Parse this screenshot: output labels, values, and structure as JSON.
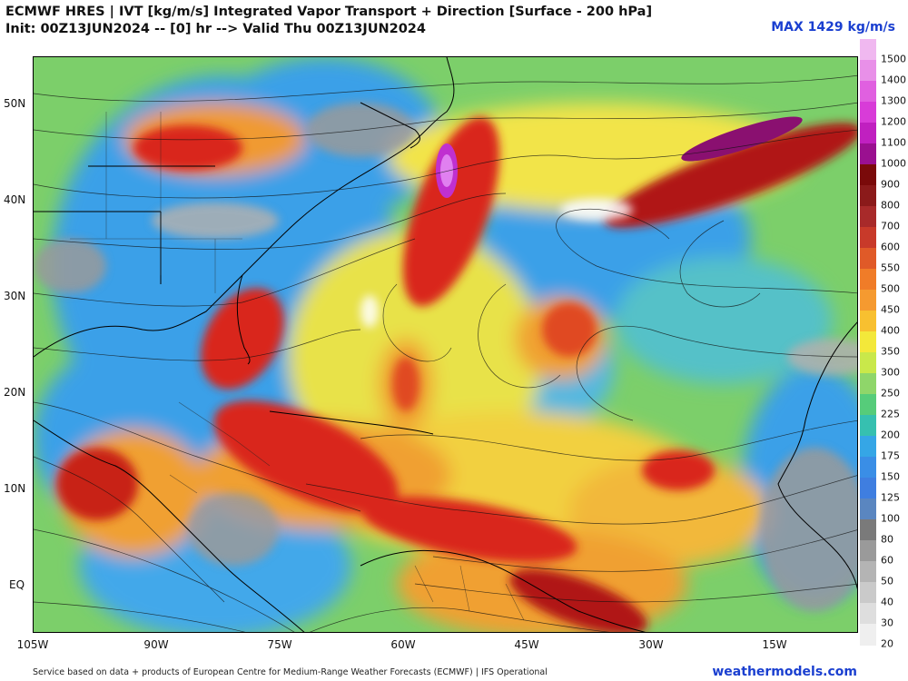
{
  "header": {
    "title_line1": "ECMWF HRES | IVT [kg/m/s] Integrated Vapor Transport + Direction [Surface - 200 hPa]",
    "title_line2": "Init: 00Z13JUN2024 -- [0] hr --> Valid Thu 00Z13JUN2024",
    "max_label": "MAX 1429 kg/m/s"
  },
  "map": {
    "lat_labels": [
      "50N",
      "40N",
      "30N",
      "20N",
      "10N",
      "EQ"
    ],
    "lon_labels": [
      "105W",
      "90W",
      "75W",
      "60W",
      "45W",
      "30W",
      "15W"
    ],
    "field_colors": {
      "ocean_low": "#3aa0e8",
      "moderate": "#6cd46a",
      "yellow": "#f2e64a",
      "orange": "#f09a30",
      "red": "#d9281c",
      "darkred": "#8b0a0a",
      "magenta": "#c030d0",
      "gray": "#8c8c8c"
    }
  },
  "colorbar": {
    "levels": [
      "1500",
      "1400",
      "1300",
      "1200",
      "1100",
      "1000",
      "900",
      "800",
      "700",
      "600",
      "550",
      "500",
      "450",
      "400",
      "350",
      "300",
      "250",
      "225",
      "200",
      "175",
      "150",
      "125",
      "100",
      "80",
      "60",
      "50",
      "40",
      "30",
      "20"
    ],
    "colors": [
      "#f0b8f0",
      "#e890e8",
      "#e060e0",
      "#d83cd8",
      "#c020c0",
      "#9a1090",
      "#7a0a0a",
      "#8b1a1a",
      "#a82a2a",
      "#c83a2a",
      "#e05a28",
      "#f07c28",
      "#f59a30",
      "#f8c030",
      "#f3e83a",
      "#c9e84a",
      "#8fd66a",
      "#56cc7a",
      "#36c0b0",
      "#35a6e6",
      "#3a8ee6",
      "#3f7ee0",
      "#5a86c0",
      "#7a7a7a",
      "#9a9a9a",
      "#b4b4b4",
      "#cacaca",
      "#dedede",
      "#efefef"
    ]
  },
  "footer": {
    "credit": "Service based on data + products of European Centre for Medium-Range Weather Forecasts (ECMWF) | IFS Operational",
    "brand": "weathermodels.com"
  }
}
